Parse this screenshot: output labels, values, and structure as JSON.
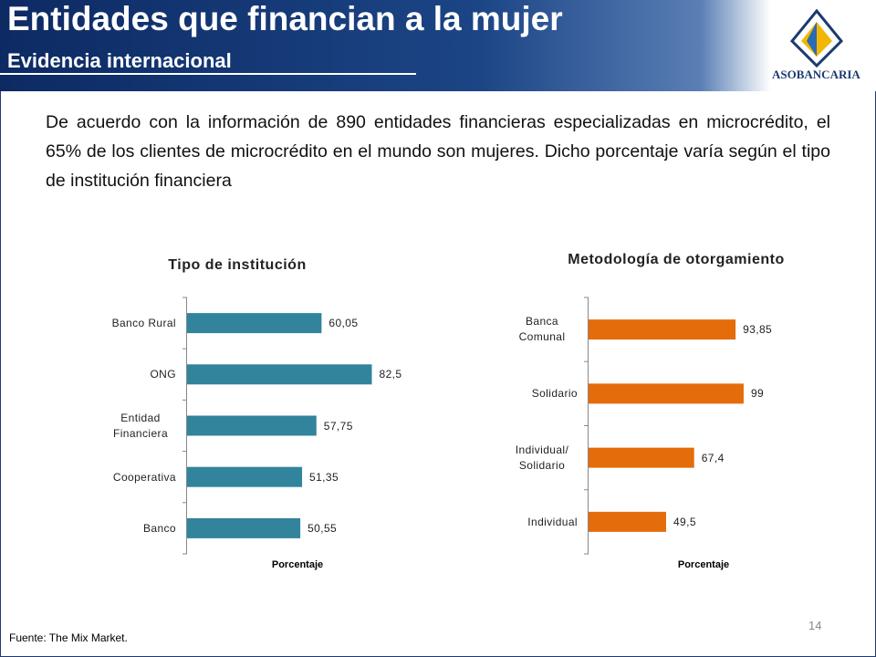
{
  "header": {
    "title": "Entidades que financian a la mujer",
    "subtitle": "Evidencia internacional",
    "logo_text": "ASOBANCARIA"
  },
  "body": "De acuerdo con la información de 890 entidades financieras especializadas en microcrédito, el 65% de los clientes de microcrédito en el mundo son mujeres. Dicho porcentaje varía según el tipo de institución financiera",
  "chart_data": [
    {
      "type": "bar",
      "orientation": "horizontal",
      "title": "Tipo de institución",
      "x_label": "Porcentaje",
      "categories": [
        "Banco Rural",
        "ONG",
        "Entidad Financiera",
        "Cooperativa",
        "Banco"
      ],
      "values": [
        60.05,
        82.5,
        57.75,
        51.35,
        50.55
      ],
      "value_labels": [
        "60,05",
        "82,5",
        "57,75",
        "51,35",
        "50,55"
      ],
      "color": "#31849b",
      "xlim": [
        0,
        110
      ]
    },
    {
      "type": "bar",
      "orientation": "horizontal",
      "title": "Metodología de otorgamiento",
      "x_label": "Porcentaje",
      "categories": [
        "Banca Comunal",
        "Solidario",
        "Individual/ Solidario",
        "Individual"
      ],
      "values": [
        93.85,
        99,
        67.4,
        49.5
      ],
      "value_labels": [
        "93,85",
        "99",
        "67,4",
        "49,5"
      ],
      "color": "#e46c0a",
      "xlim": [
        0,
        120
      ]
    }
  ],
  "source": "Fuente: The Mix Market.",
  "page_number": "14"
}
